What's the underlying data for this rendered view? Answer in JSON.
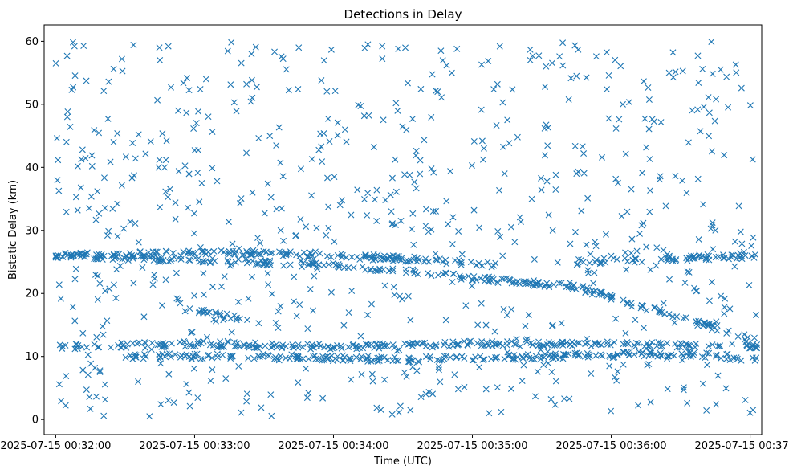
{
  "chart_data": {
    "type": "scatter",
    "title": "Detections in Delay",
    "xlabel": "Time (UTC)",
    "ylabel": "Bistatic Delay (km)",
    "marker": "x",
    "color": "#1f77b4",
    "grid": false,
    "legend": "none",
    "xlim": [
      "2025-07-15 00:31:55",
      "2025-07-15 00:37:05"
    ],
    "ylim": [
      -2.4,
      62.6
    ],
    "xticks": [
      "2025-07-15 00:32:00",
      "2025-07-15 00:33:00",
      "2025-07-15 00:34:00",
      "2025-07-15 00:35:00",
      "2025-07-15 00:36:00",
      "2025-07-15 00:37:00"
    ],
    "yticks": [
      0,
      10,
      20,
      30,
      40,
      50,
      60
    ],
    "tracks": [
      {
        "x": [
          "2025-07-15 00:32:00",
          "2025-07-15 00:34:00",
          "2025-07-15 00:35:45",
          "2025-07-15 00:37:03"
        ],
        "y": [
          26,
          24.5,
          21,
          12.5
        ]
      },
      {
        "x": [
          "2025-07-15 00:32:00",
          "2025-07-15 00:33:30",
          "2025-07-15 00:34:30",
          "2025-07-15 00:35:10"
        ],
        "y": [
          26,
          26.5,
          25.5,
          24.5
        ]
      },
      {
        "x": [
          "2025-07-15 00:35:45",
          "2025-07-15 00:37:03"
        ],
        "y": [
          25,
          26
        ]
      },
      {
        "x": [
          "2025-07-15 00:32:00",
          "2025-07-15 00:33:00",
          "2025-07-15 00:34:00",
          "2025-07-15 00:35:00",
          "2025-07-15 00:36:00",
          "2025-07-15 00:37:03"
        ],
        "y": [
          11.5,
          12,
          11.5,
          12,
          12,
          11.5
        ]
      },
      {
        "x": [
          "2025-07-15 00:32:30",
          "2025-07-15 00:33:30",
          "2025-07-15 00:34:30",
          "2025-07-15 00:35:30",
          "2025-07-15 00:36:30",
          "2025-07-15 00:37:03"
        ],
        "y": [
          10,
          10,
          9.5,
          10,
          10.5,
          9.5
        ]
      },
      {
        "x": [
          "2025-07-15 00:32:55",
          "2025-07-15 00:33:20"
        ],
        "y": [
          17.5,
          16
        ]
      }
    ],
    "scatter": {
      "x": [
        "2025-07-15 00:32:05",
        "2025-07-15 00:32:25",
        "2025-07-15 00:32:45",
        "2025-07-15 00:33:05",
        "2025-07-15 00:33:25",
        "2025-07-15 00:33:45",
        "2025-07-15 00:34:05",
        "2025-07-15 00:34:25",
        "2025-07-15 00:34:45",
        "2025-07-15 00:35:05",
        "2025-07-15 00:35:25",
        "2025-07-15 00:35:45",
        "2025-07-15 00:36:05",
        "2025-07-15 00:36:25",
        "2025-07-15 00:36:45"
      ],
      "y": [
        48,
        44,
        57,
        54,
        36,
        59,
        46,
        33,
        52,
        43,
        57,
        39,
        50,
        55,
        30
      ]
    }
  }
}
